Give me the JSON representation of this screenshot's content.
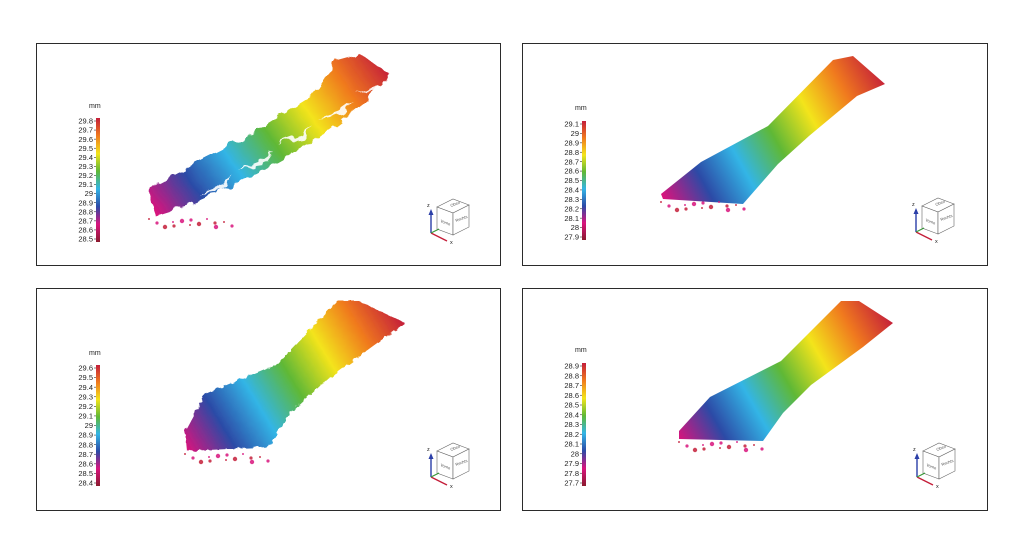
{
  "colors": {
    "red": "#c41e3a",
    "orange": "#f07a1e",
    "yellow": "#f3e41b",
    "green": "#5fb836",
    "cyan": "#33b5e6",
    "blue": "#2c4aa6",
    "magenta": "#d8147d",
    "darkred": "#8b1a2e"
  },
  "orientation_cube": {
    "labels": [
      "Oben",
      "Vorne",
      "Rechts"
    ],
    "axes": [
      "z",
      "x"
    ]
  },
  "panels": [
    {
      "unit": "mm",
      "ticks": [
        "29.8",
        "29.7",
        "29.6",
        "29.5",
        "29.4",
        "29.3",
        "29.2",
        "29.1",
        "29",
        "28.9",
        "28.8",
        "28.7",
        "28.6",
        "28.5"
      ],
      "surface": "rough"
    },
    {
      "unit": "mm",
      "ticks": [
        "29.1",
        "29",
        "28.9",
        "28.8",
        "28.7",
        "28.6",
        "28.5",
        "28.4",
        "28.3",
        "28.2",
        "28.1",
        "28",
        "27.9"
      ],
      "surface": "smooth"
    },
    {
      "unit": "mm",
      "ticks": [
        "29.6",
        "29.5",
        "29.4",
        "29.3",
        "29.2",
        "29.1",
        "29",
        "28.9",
        "28.8",
        "28.7",
        "28.6",
        "28.5",
        "28.4"
      ],
      "surface": "medium"
    },
    {
      "unit": "mm",
      "ticks": [
        "28.9",
        "28.8",
        "28.7",
        "28.6",
        "28.5",
        "28.4",
        "28.3",
        "28.2",
        "28.1",
        "28",
        "27.9",
        "27.8",
        "27.7"
      ],
      "surface": "smooth"
    }
  ]
}
